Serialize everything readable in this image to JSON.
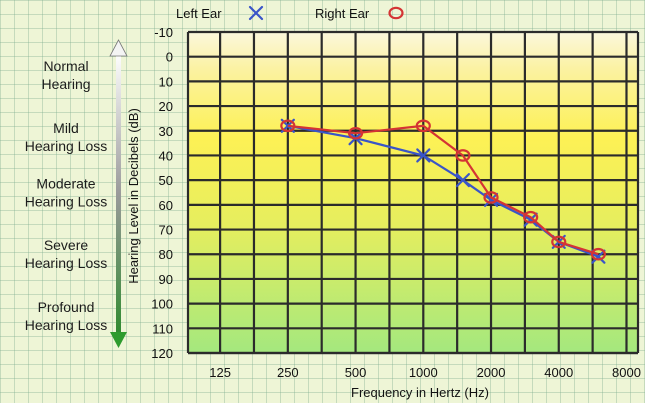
{
  "chart_data": {
    "type": "line",
    "xlabel": "Frequency in Hertz (Hz)",
    "ylabel": "Hearing Level in Decibels (dB)",
    "x_ticks": [
      "125",
      "250",
      "500",
      "1000",
      "2000",
      "4000",
      "8000"
    ],
    "y_ticks": [
      -10,
      0,
      10,
      20,
      30,
      40,
      50,
      60,
      70,
      80,
      90,
      100,
      110,
      120
    ],
    "ylim": [
      -10,
      120
    ],
    "x_scale": "log",
    "xlim": [
      90,
      9000
    ],
    "y_inverted": true,
    "grid": true,
    "legend_position": "top",
    "hearing_categories": [
      {
        "label": [
          "Normal",
          "Hearing"
        ],
        "range": [
          -10,
          25
        ]
      },
      {
        "label": [
          "Mild",
          "Hearing Loss"
        ],
        "range": [
          25,
          40
        ]
      },
      {
        "label": [
          "Moderate",
          "Hearing Loss"
        ],
        "range": [
          40,
          70
        ]
      },
      {
        "label": [
          "Severe",
          "Hearing Loss"
        ],
        "range": [
          70,
          90
        ]
      },
      {
        "label": [
          "Profound",
          "Hearing Loss"
        ],
        "range": [
          90,
          120
        ]
      }
    ],
    "series": [
      {
        "name": "Left Ear",
        "marker": "x",
        "color": "#3a55c8",
        "x": [
          250,
          500,
          1000,
          1500,
          2000,
          3000,
          4000,
          6000
        ],
        "y": [
          28,
          33,
          40,
          50,
          58,
          66,
          75,
          81
        ]
      },
      {
        "name": "Right Ear",
        "marker": "o",
        "color": "#d43434",
        "x": [
          250,
          500,
          1000,
          1500,
          2000,
          3000,
          4000,
          6000
        ],
        "y": [
          28,
          31,
          28,
          40,
          57,
          65,
          75,
          80
        ]
      }
    ]
  },
  "colors": {
    "grid": "#2b2b2b",
    "band_top": "#fbf7dc",
    "band_yellow": "#fdf155",
    "band_bottom": "#a4e87e",
    "arrow": "#3a3a3a"
  }
}
